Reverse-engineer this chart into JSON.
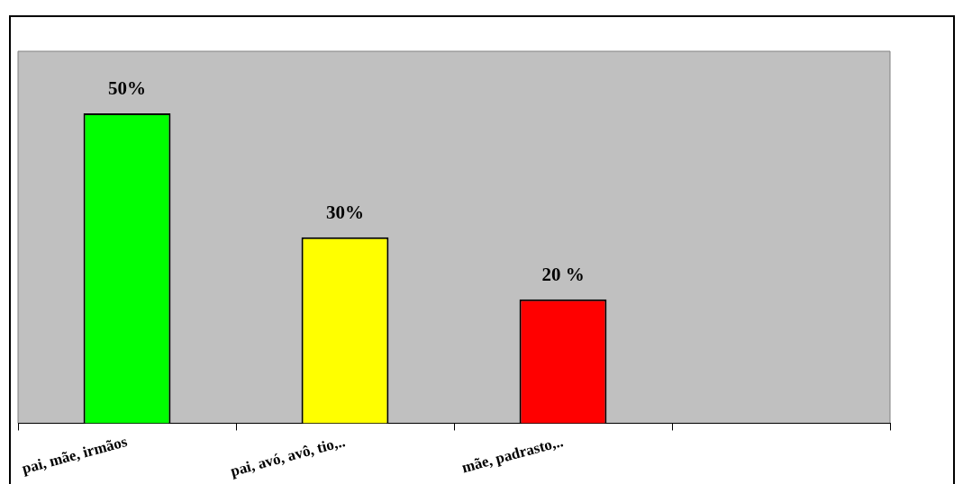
{
  "chart_data": {
    "type": "bar",
    "categories": [
      "pai, mãe, irmãos",
      "pai, avó, avô, tio,..",
      "mãe, padrasto,..",
      null
    ],
    "values": [
      50,
      30,
      20,
      null
    ],
    "colors": [
      "#00ff00",
      "#ffff00",
      "#ff0000",
      null
    ],
    "value_labels": [
      "50%",
      "30%",
      "20 %",
      null
    ],
    "ylim": [
      0,
      60
    ],
    "grid": false,
    "legend": false
  }
}
